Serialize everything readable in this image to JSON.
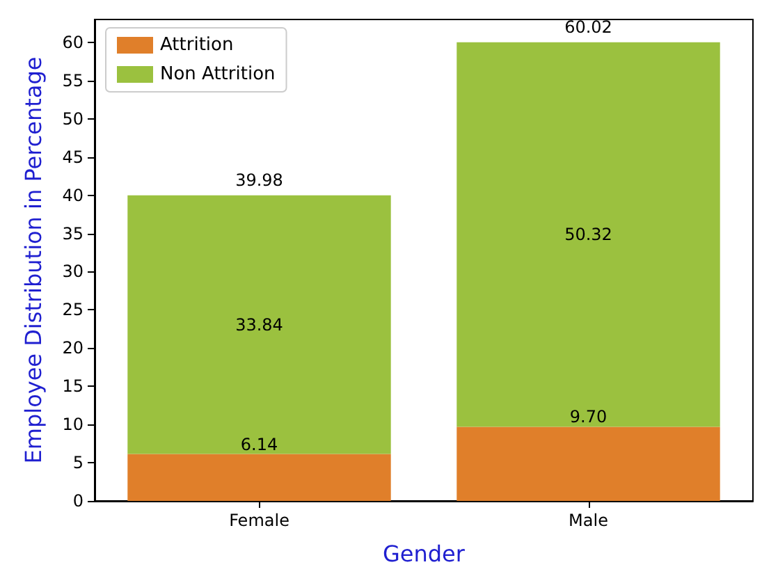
{
  "chart_data": {
    "type": "bar",
    "stacked": true,
    "xlabel": "Gender",
    "ylabel": "Employee Distribution in Percentage",
    "categories": [
      "Female",
      "Male"
    ],
    "series": [
      {
        "name": "Attrition",
        "color": "#e07f2a",
        "values": [
          6.14,
          9.7
        ],
        "value_labels": [
          "6.14",
          "9.70"
        ]
      },
      {
        "name": "Non Attrition",
        "color": "#9bc13f",
        "values": [
          33.84,
          50.32
        ],
        "value_labels": [
          "33.84",
          "50.32"
        ]
      }
    ],
    "totals": [
      "39.98",
      "60.02"
    ],
    "ylim": [
      0,
      63
    ],
    "yticks": [
      0,
      5,
      10,
      15,
      20,
      25,
      30,
      35,
      40,
      45,
      50,
      55,
      60
    ],
    "grid": false,
    "legend": "top left"
  }
}
